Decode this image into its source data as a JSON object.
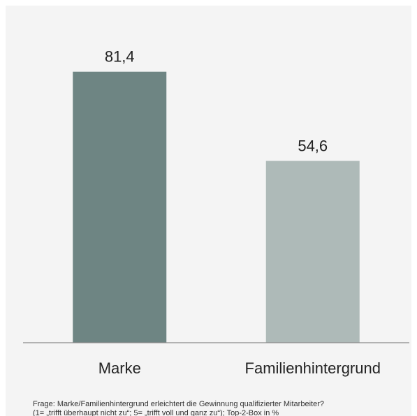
{
  "chart_data": {
    "type": "bar",
    "categories": [
      "Marke",
      "Familienhintergrund"
    ],
    "values": [
      81.4,
      54.6
    ],
    "value_labels": [
      "81,4",
      "54,6"
    ],
    "colors": [
      "#6e8583",
      "#aebab8"
    ],
    "ylim": [
      0,
      100
    ],
    "grid": false,
    "title": "",
    "xlabel": "",
    "ylabel": ""
  },
  "footnote": {
    "line1": "Frage: Marke/Familienhintergrund erleichtert die Gewinnung qualifizierter Mitarbeiter?",
    "line2": "(1= „trifft überhaupt nicht zu“; 5= „trifft voll und ganz zu“); Top-2-Box in %"
  }
}
